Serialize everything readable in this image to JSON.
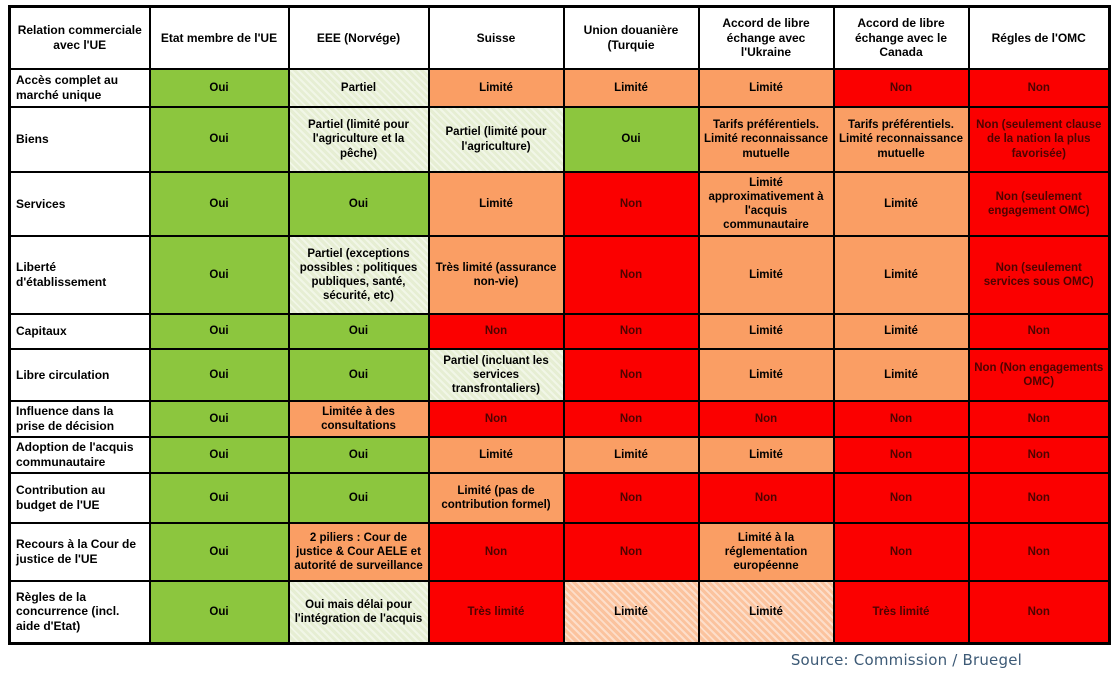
{
  "palette": {
    "green": "#8CC63E",
    "lightgreen": "#E6EED3",
    "orange": "#FA9E64",
    "salmon": "#FBC39E",
    "red": "#FB0000",
    "red_text": "#4E0300",
    "text": "#000000",
    "source_text": "#3D5A76"
  },
  "source": {
    "label": "Source: Commission / Bruegel"
  },
  "chart_data": {
    "type": "table",
    "columns": [
      "Relation commerciale avec l'UE",
      "Etat membre de l'UE",
      "EEE (Norvége)",
      "Suisse",
      "Union douanière (Turquie",
      "Accord de libre échange avec l'Ukraine",
      "Accord de libre échange avec le Canada",
      "Régles de l'OMC"
    ],
    "rows": [
      {
        "label": "Accès complet au marché unique",
        "cells": [
          {
            "text": "Oui",
            "tone": "green"
          },
          {
            "text": "Partiel",
            "tone": "lightgreen"
          },
          {
            "text": "Limité",
            "tone": "orange"
          },
          {
            "text": "Limité",
            "tone": "orange"
          },
          {
            "text": "Limité",
            "tone": "orange"
          },
          {
            "text": "Non",
            "tone": "red"
          },
          {
            "text": "Non",
            "tone": "red"
          }
        ]
      },
      {
        "label": "Biens",
        "cells": [
          {
            "text": "Oui",
            "tone": "green"
          },
          {
            "text": "Partiel (limité pour l'agriculture et la pêche)",
            "tone": "lightgreen"
          },
          {
            "text": "Partiel (limité pour l'agriculture)",
            "tone": "lightgreen"
          },
          {
            "text": "Oui",
            "tone": "green"
          },
          {
            "text": "Tarifs préférentiels. Limité reconnaissance mutuelle",
            "tone": "orange"
          },
          {
            "text": "Tarifs préférentiels. Limité reconnaissance mutuelle",
            "tone": "orange"
          },
          {
            "text": "Non (seulement clause de la nation la plus favorisée)",
            "tone": "red"
          }
        ]
      },
      {
        "label": "Services",
        "cells": [
          {
            "text": "Oui",
            "tone": "green"
          },
          {
            "text": "Oui",
            "tone": "green"
          },
          {
            "text": "Limité",
            "tone": "orange"
          },
          {
            "text": "Non",
            "tone": "red"
          },
          {
            "text": "Limité approximativement à l'acquis communautaire",
            "tone": "orange"
          },
          {
            "text": "Limité",
            "tone": "orange"
          },
          {
            "text": "Non (seulement engagement OMC)",
            "tone": "red"
          }
        ]
      },
      {
        "label": "Liberté d'établissement",
        "cells": [
          {
            "text": "Oui",
            "tone": "green"
          },
          {
            "text": "Partiel (exceptions possibles : politiques publiques, santé, sécurité, etc)",
            "tone": "lightgreen"
          },
          {
            "text": "Très limité (assurance non-vie)",
            "tone": "orange"
          },
          {
            "text": "Non",
            "tone": "red"
          },
          {
            "text": "Limité",
            "tone": "orange"
          },
          {
            "text": "Limité",
            "tone": "orange"
          },
          {
            "text": "Non (seulement services sous OMC)",
            "tone": "red"
          }
        ]
      },
      {
        "label": "Capitaux",
        "cells": [
          {
            "text": "Oui",
            "tone": "green"
          },
          {
            "text": "Oui",
            "tone": "green"
          },
          {
            "text": "Non",
            "tone": "red"
          },
          {
            "text": "Non",
            "tone": "red"
          },
          {
            "text": "Limité",
            "tone": "orange"
          },
          {
            "text": "Limité",
            "tone": "orange"
          },
          {
            "text": "Non",
            "tone": "red"
          }
        ]
      },
      {
        "label": "Libre circulation",
        "cells": [
          {
            "text": "Oui",
            "tone": "green"
          },
          {
            "text": "Oui",
            "tone": "green"
          },
          {
            "text": "Partiel (incluant les services transfrontaliers)",
            "tone": "lightgreen"
          },
          {
            "text": "Non",
            "tone": "red"
          },
          {
            "text": "Limité",
            "tone": "orange"
          },
          {
            "text": "Limité",
            "tone": "orange"
          },
          {
            "text": "Non (Non engagements OMC)",
            "tone": "red"
          }
        ]
      },
      {
        "label": "Influence dans la prise de décision",
        "cells": [
          {
            "text": "Oui",
            "tone": "green"
          },
          {
            "text": "Limitée à des consultations",
            "tone": "orange"
          },
          {
            "text": "Non",
            "tone": "red"
          },
          {
            "text": "Non",
            "tone": "red"
          },
          {
            "text": "Non",
            "tone": "red"
          },
          {
            "text": "Non",
            "tone": "red"
          },
          {
            "text": "Non",
            "tone": "red"
          }
        ]
      },
      {
        "label": "Adoption de l'acquis communautaire",
        "cells": [
          {
            "text": "Oui",
            "tone": "green"
          },
          {
            "text": "Oui",
            "tone": "green"
          },
          {
            "text": "Limité",
            "tone": "orange"
          },
          {
            "text": "Limité",
            "tone": "orange"
          },
          {
            "text": "Limité",
            "tone": "orange"
          },
          {
            "text": "Non",
            "tone": "red"
          },
          {
            "text": "Non",
            "tone": "red"
          }
        ]
      },
      {
        "label": "Contribution au budget de l'UE",
        "cells": [
          {
            "text": "Oui",
            "tone": "green"
          },
          {
            "text": "Oui",
            "tone": "green"
          },
          {
            "text": "Limité (pas de contribution formel)",
            "tone": "orange"
          },
          {
            "text": "Non",
            "tone": "red"
          },
          {
            "text": "Non",
            "tone": "red"
          },
          {
            "text": "Non",
            "tone": "red"
          },
          {
            "text": "Non",
            "tone": "red"
          }
        ]
      },
      {
        "label": "Recours à la Cour de justice de l'UE",
        "cells": [
          {
            "text": "Oui",
            "tone": "green"
          },
          {
            "text": "2 piliers : Cour de justice & Cour AELE et autorité de surveillance",
            "tone": "orange"
          },
          {
            "text": "Non",
            "tone": "red"
          },
          {
            "text": "Non",
            "tone": "red"
          },
          {
            "text": "Limité à la réglementation européenne",
            "tone": "orange"
          },
          {
            "text": "Non",
            "tone": "red"
          },
          {
            "text": "Non",
            "tone": "red"
          }
        ]
      },
      {
        "label": "Règles de la concurrence (incl. aide d'Etat)",
        "cells": [
          {
            "text": "Oui",
            "tone": "green"
          },
          {
            "text": "Oui mais délai pour l'intégration de l'acquis",
            "tone": "lightgreen"
          },
          {
            "text": "Très limité",
            "tone": "red"
          },
          {
            "text": "Limité",
            "tone": "salmon"
          },
          {
            "text": "Limité",
            "tone": "salmon"
          },
          {
            "text": "Très limité",
            "tone": "red"
          },
          {
            "text": "Non",
            "tone": "red"
          }
        ]
      }
    ]
  }
}
